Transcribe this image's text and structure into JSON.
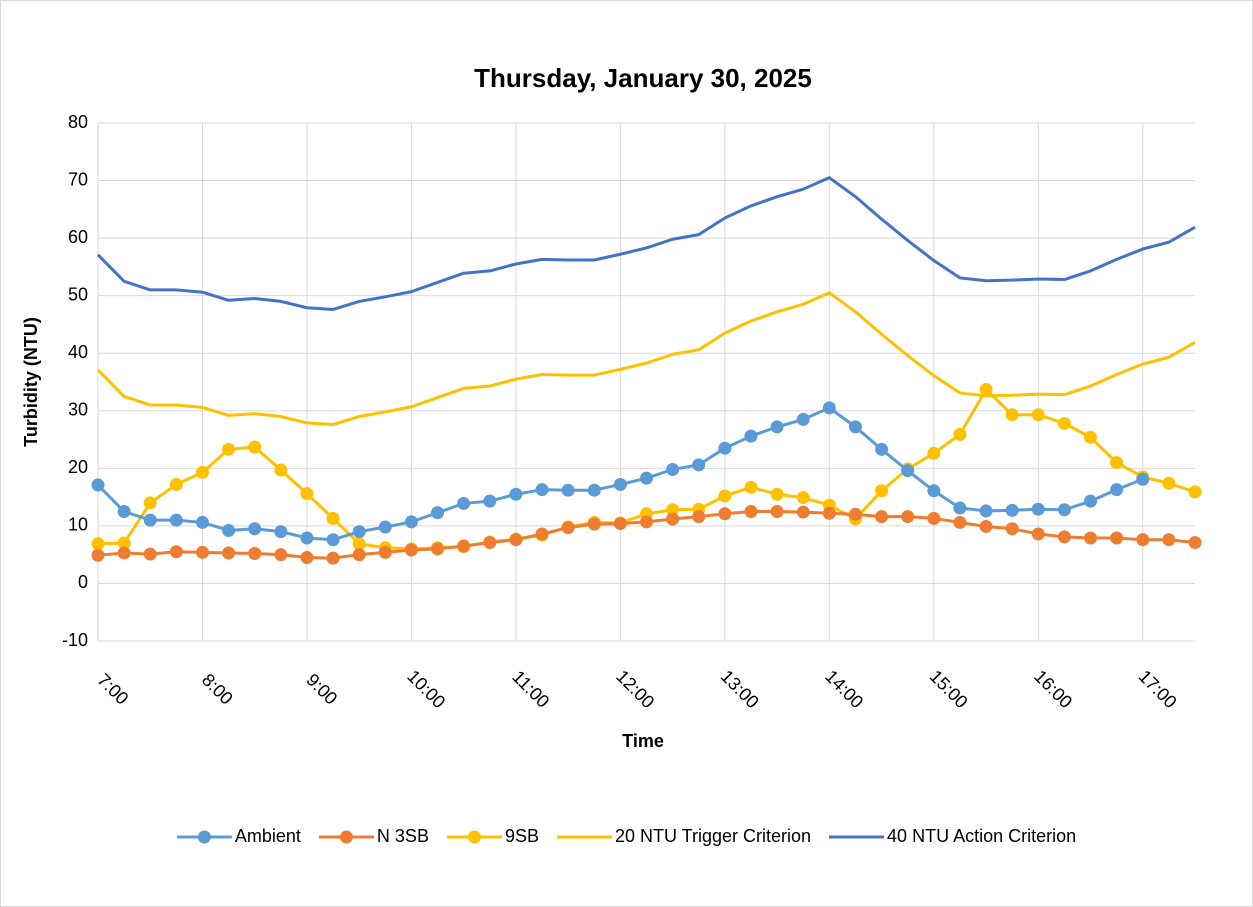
{
  "chart_data": {
    "type": "line",
    "title": "Thursday, January 30, 2025",
    "x_label": "Time",
    "y_label": "Turbidity (NTU)",
    "categories": [
      "7:00",
      null,
      null,
      null,
      "8:00",
      null,
      null,
      null,
      "9:00",
      null,
      null,
      null,
      "10:00",
      null,
      null,
      null,
      "11:00",
      null,
      null,
      null,
      "12:00",
      null,
      null,
      null,
      "13:00",
      null,
      null,
      null,
      "14:00",
      null,
      null,
      null,
      "15:00",
      null,
      null,
      null,
      "16:00",
      null,
      null,
      null,
      "17:00",
      null,
      null
    ],
    "series": [
      {
        "name": "Ambient",
        "color": "#5b9bd5",
        "markers": true,
        "values": [
          17.1,
          12.5,
          11,
          11,
          10.6,
          9.2,
          9.5,
          9,
          7.9,
          7.6,
          9,
          9.8,
          10.7,
          12.3,
          13.9,
          14.3,
          15.5,
          16.3,
          16.2,
          16.2,
          17.2,
          18.3,
          19.8,
          20.6,
          23.5,
          25.6,
          27.2,
          28.5,
          30.5,
          27.2,
          23.3,
          19.6,
          16.1,
          13.1,
          12.6,
          12.7,
          12.9,
          12.8,
          14.3,
          16.3,
          18.1,
          null,
          null
        ]
      },
      {
        "name": "N 3SB",
        "color": "#ed7d31",
        "markers": true,
        "values": [
          4.9,
          5.3,
          5.1,
          5.5,
          5.4,
          5.3,
          5.2,
          5,
          4.5,
          4.4,
          5,
          5.4,
          5.8,
          6,
          6.5,
          7.1,
          7.6,
          8.6,
          9.7,
          10.3,
          10.4,
          10.7,
          11.2,
          11.6,
          12.1,
          12.5,
          12.5,
          12.4,
          12.2,
          12,
          11.6,
          11.6,
          11.3,
          10.6,
          9.9,
          9.5,
          8.6,
          8.1,
          7.9,
          7.9,
          7.6,
          7.6,
          7.1
        ]
      },
      {
        "name": "9SB",
        "color": "#ffc000",
        "markers": true,
        "values": [
          6.9,
          7,
          14,
          17.2,
          19.3,
          23.3,
          23.7,
          19.7,
          15.6,
          11.3,
          6.9,
          6.2,
          6,
          6.2,
          6.4,
          7.2,
          7.7,
          8.4,
          9.8,
          10.6,
          10.5,
          12.1,
          12.8,
          12.9,
          15.2,
          16.7,
          15.5,
          14.9,
          13.6,
          11.2,
          16.1,
          19.9,
          22.6,
          25.9,
          33.7,
          29.3,
          29.3,
          27.8,
          25.4,
          21,
          18.5,
          17.4,
          15.9
        ]
      },
      {
        "name": "20 NTU Trigger Criterion",
        "color": "#ffc000",
        "markers": false,
        "values": [
          37.1,
          32.5,
          31,
          31,
          30.6,
          29.2,
          29.5,
          29,
          27.9,
          27.6,
          29,
          29.8,
          30.7,
          32.3,
          33.9,
          34.3,
          35.5,
          36.3,
          36.2,
          36.2,
          37.2,
          38.3,
          39.8,
          40.6,
          43.5,
          45.6,
          47.2,
          48.5,
          50.5,
          47.2,
          43.3,
          39.6,
          36.1,
          33.1,
          32.6,
          32.7,
          32.9,
          32.8,
          34.3,
          36.3,
          38.1,
          39.3,
          41.9
        ]
      },
      {
        "name": "40 NTU Action Criterion",
        "color": "#4472c4",
        "markers": false,
        "values": [
          57.1,
          52.5,
          51,
          51,
          50.6,
          49.2,
          49.5,
          49,
          47.9,
          47.6,
          49,
          49.8,
          50.7,
          52.3,
          53.9,
          54.3,
          55.5,
          56.3,
          56.2,
          56.2,
          57.2,
          58.3,
          59.8,
          60.6,
          63.5,
          65.6,
          67.2,
          68.5,
          70.5,
          67.2,
          63.3,
          59.6,
          56.1,
          53.1,
          52.6,
          52.7,
          52.9,
          52.8,
          54.3,
          56.3,
          58.1,
          59.3,
          61.9
        ]
      }
    ],
    "ylim": [
      -10,
      80
    ],
    "yticks": [
      -10,
      0,
      10,
      20,
      30,
      40,
      50,
      60,
      70,
      80
    ],
    "grid": true,
    "legend": "bottom"
  }
}
